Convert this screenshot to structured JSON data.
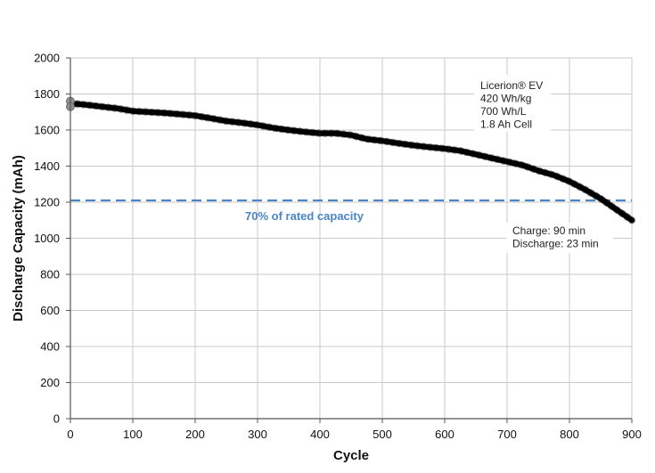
{
  "chart_data": {
    "type": "line",
    "title": "",
    "xlabel": "Cycle",
    "ylabel": "Discharge Capacity (mAh)",
    "xlim": [
      0,
      900
    ],
    "ylim": [
      0,
      2000
    ],
    "x_ticks": [
      "0",
      "100",
      "200",
      "300",
      "400",
      "500",
      "600",
      "700",
      "800",
      "900"
    ],
    "y_ticks": [
      "0",
      "200",
      "400",
      "600",
      "800",
      "1000",
      "1200",
      "1400",
      "1600",
      "1800",
      "2000"
    ],
    "grid": true,
    "series": [
      {
        "name": "Discharge capacity",
        "color": "#000000",
        "x": [
          0,
          10,
          25,
          50,
          75,
          100,
          125,
          150,
          175,
          200,
          225,
          250,
          275,
          300,
          325,
          350,
          375,
          400,
          425,
          450,
          475,
          500,
          525,
          550,
          575,
          600,
          625,
          650,
          675,
          700,
          725,
          750,
          775,
          800,
          825,
          850,
          875,
          900
        ],
        "values": [
          1740,
          1745,
          1740,
          1730,
          1720,
          1705,
          1700,
          1695,
          1688,
          1680,
          1665,
          1650,
          1640,
          1628,
          1612,
          1600,
          1590,
          1582,
          1582,
          1572,
          1550,
          1540,
          1527,
          1515,
          1505,
          1497,
          1485,
          1465,
          1445,
          1425,
          1405,
          1375,
          1350,
          1315,
          1270,
          1220,
          1160,
          1100
        ]
      }
    ],
    "threshold": {
      "value": 1210,
      "label": "70% of rated capacity",
      "color": "#4a86c5"
    },
    "annotations": {
      "cell_info": [
        "Licerion® EV",
        "420 Wh/kg",
        "700 Wh/L",
        "1.8 Ah Cell"
      ],
      "rates": [
        "Charge: 90 min",
        "Discharge: 23 min"
      ]
    },
    "start_marker": {
      "x": [
        0,
        0
      ],
      "values": [
        1760,
        1730
      ],
      "color": "#8f8f8f"
    }
  }
}
